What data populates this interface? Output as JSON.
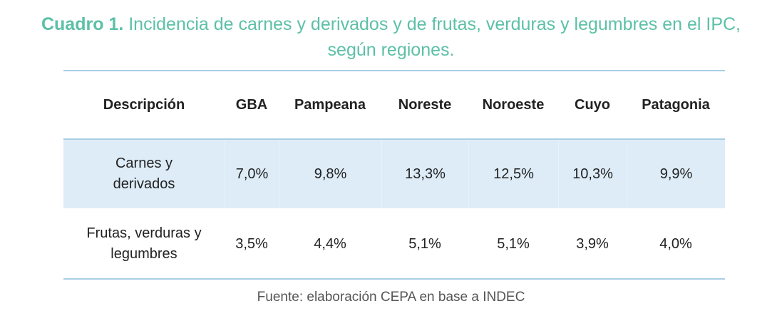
{
  "title": {
    "prefix": "Cuadro 1.",
    "line1": " Incidencia de carnes y derivados y de frutas, verduras y legumbres en el IPC,",
    "line2": "según regiones."
  },
  "table": {
    "headers": [
      "Descripción",
      "GBA",
      "Pampeana",
      "Noreste",
      "Noroeste",
      "Cuyo",
      "Patagonia"
    ],
    "rows": [
      {
        "label_line1": "Carnes y",
        "label_line2": "derivados",
        "values": [
          "7,0%",
          "9,8%",
          "13,3%",
          "12,5%",
          "10,3%",
          "9,9%"
        ]
      },
      {
        "label_line1": "Frutas, verduras y",
        "label_line2": "legumbres",
        "values": [
          "3,5%",
          "4,4%",
          "5,1%",
          "5,1%",
          "3,9%",
          "4,0%"
        ]
      }
    ]
  },
  "source": "Fuente: elaboración CEPA en base a INDEC",
  "colors": {
    "title": "#5cc0a7",
    "row_highlight": "#ddecf7",
    "rule": "#a9cfe4"
  }
}
